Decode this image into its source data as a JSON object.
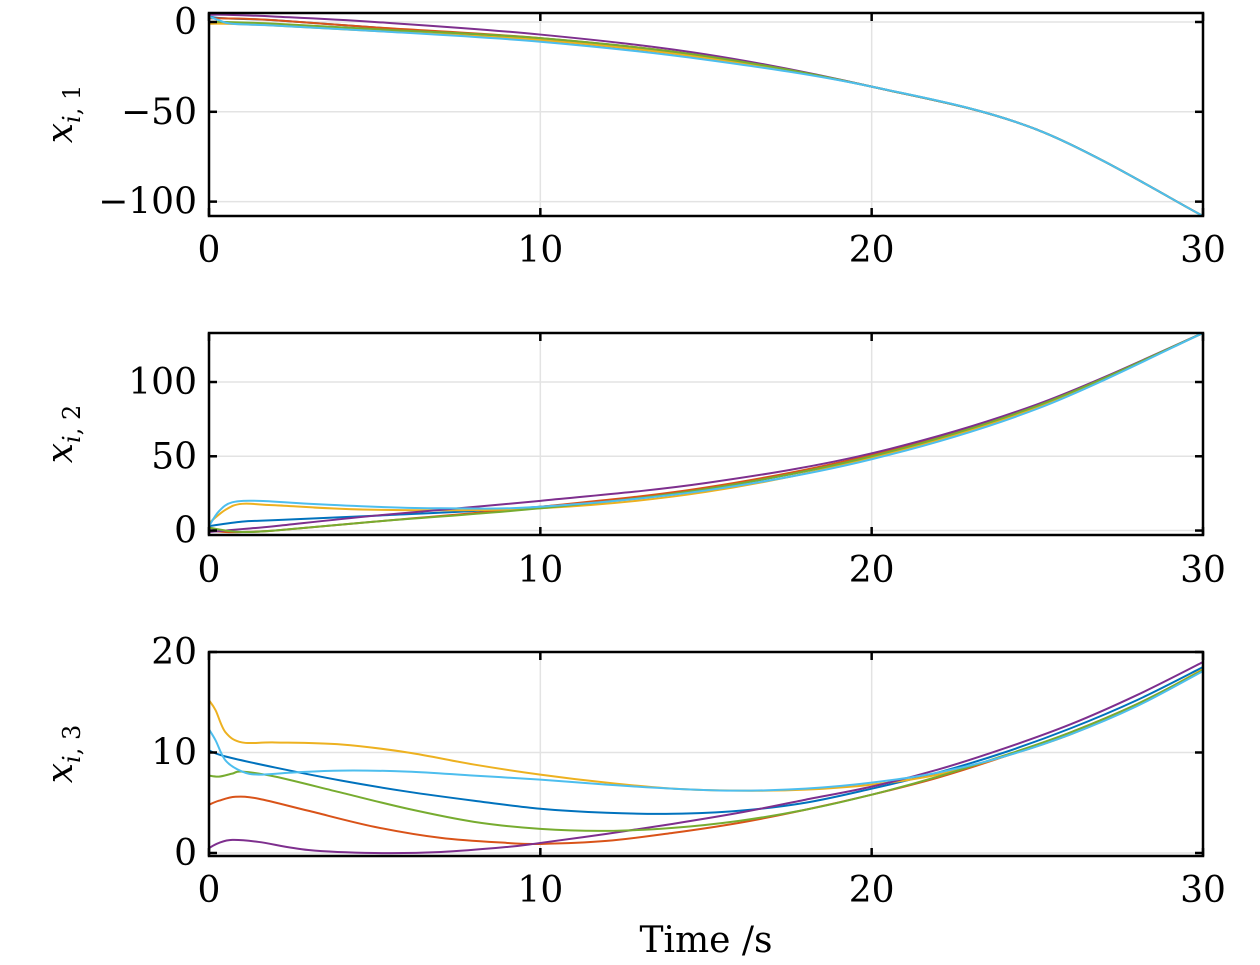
{
  "chart_data": [
    {
      "type": "line",
      "xlabel": "",
      "ylabel": {
        "symbol": "x",
        "sub_i": "i",
        "sub_rest": ", 1"
      },
      "xlim": [
        0,
        30
      ],
      "ylim": [
        -108,
        5
      ],
      "xticks": [
        0,
        10,
        20,
        30
      ],
      "xtick_labels": [
        "0",
        "10",
        "20",
        "30"
      ],
      "yticks": [
        0,
        -50,
        -100
      ],
      "ytick_labels": [
        "0",
        "−50",
        "−100"
      ],
      "grid": true,
      "series": [
        {
          "color": "#0072BD",
          "points": [
            [
              0,
              3
            ],
            [
              0.5,
              2
            ],
            [
              2,
              1
            ],
            [
              5,
              -3
            ],
            [
              10,
              -10
            ],
            [
              15,
              -20
            ],
            [
              20,
              -36
            ],
            [
              25,
              -60
            ],
            [
              30,
              -108
            ]
          ]
        },
        {
          "color": "#D95319",
          "points": [
            [
              0,
              2
            ],
            [
              0.5,
              2
            ],
            [
              2,
              1
            ],
            [
              5,
              -3
            ],
            [
              10,
              -9
            ],
            [
              15,
              -19
            ],
            [
              20,
              -36
            ],
            [
              25,
              -60
            ],
            [
              30,
              -108
            ]
          ]
        },
        {
          "color": "#EDB120",
          "points": [
            [
              0,
              -1
            ],
            [
              0.5,
              -1
            ],
            [
              2,
              -2
            ],
            [
              5,
              -5
            ],
            [
              10,
              -10
            ],
            [
              15,
              -20
            ],
            [
              20,
              -36
            ],
            [
              25,
              -60
            ],
            [
              30,
              -108
            ]
          ]
        },
        {
          "color": "#7E2F8E",
          "points": [
            [
              0,
              4
            ],
            [
              0.5,
              4
            ],
            [
              2,
              3
            ],
            [
              5,
              0
            ],
            [
              10,
              -7
            ],
            [
              15,
              -18
            ],
            [
              20,
              -36
            ],
            [
              25,
              -60
            ],
            [
              30,
              -108
            ]
          ]
        },
        {
          "color": "#77AC30",
          "points": [
            [
              0,
              0
            ],
            [
              0.5,
              0
            ],
            [
              2,
              -1
            ],
            [
              5,
              -4
            ],
            [
              10,
              -9
            ],
            [
              15,
              -19
            ],
            [
              20,
              -36
            ],
            [
              25,
              -60
            ],
            [
              30,
              -108
            ]
          ]
        },
        {
          "color": "#4DBEEE",
          "points": [
            [
              0,
              3
            ],
            [
              0.3,
              1
            ],
            [
              0.7,
              -1
            ],
            [
              2,
              -2
            ],
            [
              5,
              -5
            ],
            [
              10,
              -11
            ],
            [
              15,
              -21
            ],
            [
              20,
              -36
            ],
            [
              25,
              -60
            ],
            [
              30,
              -108
            ]
          ]
        }
      ]
    },
    {
      "type": "line",
      "xlabel": "",
      "ylabel": {
        "symbol": "x",
        "sub_i": "i",
        "sub_rest": ", 2"
      },
      "xlim": [
        0,
        30
      ],
      "ylim": [
        -3,
        133
      ],
      "xticks": [
        0,
        10,
        20,
        30
      ],
      "xtick_labels": [
        "0",
        "10",
        "20",
        "30"
      ],
      "yticks": [
        0,
        50,
        100
      ],
      "ytick_labels": [
        "0",
        "50",
        "100"
      ],
      "grid": true,
      "series": [
        {
          "color": "#0072BD",
          "points": [
            [
              0,
              3
            ],
            [
              1,
              6
            ],
            [
              2,
              7
            ],
            [
              5,
              10
            ],
            [
              10,
              16
            ],
            [
              15,
              28
            ],
            [
              20,
              50
            ],
            [
              25,
              83
            ],
            [
              30,
              133
            ]
          ]
        },
        {
          "color": "#D95319",
          "points": [
            [
              0,
              0
            ],
            [
              0.5,
              -1
            ],
            [
              1,
              -1
            ],
            [
              2,
              0
            ],
            [
              5,
              6
            ],
            [
              10,
              16
            ],
            [
              15,
              29
            ],
            [
              20,
              51
            ],
            [
              25,
              84
            ],
            [
              30,
              133
            ]
          ]
        },
        {
          "color": "#EDB120",
          "points": [
            [
              0,
              5
            ],
            [
              0.5,
              14
            ],
            [
              1,
              18
            ],
            [
              2,
              17
            ],
            [
              5,
              14
            ],
            [
              10,
              15
            ],
            [
              15,
              26
            ],
            [
              20,
              49
            ],
            [
              25,
              83
            ],
            [
              30,
              133
            ]
          ]
        },
        {
          "color": "#7E2F8E",
          "points": [
            [
              0,
              -1
            ],
            [
              1,
              1
            ],
            [
              2,
              3
            ],
            [
              5,
              10
            ],
            [
              10,
              20
            ],
            [
              15,
              32
            ],
            [
              20,
              52
            ],
            [
              25,
              85
            ],
            [
              30,
              133
            ]
          ]
        },
        {
          "color": "#77AC30",
          "points": [
            [
              0,
              2
            ],
            [
              0.5,
              0
            ],
            [
              1,
              -1
            ],
            [
              2,
              0
            ],
            [
              5,
              6
            ],
            [
              10,
              15
            ],
            [
              15,
              28
            ],
            [
              20,
              50
            ],
            [
              25,
              84
            ],
            [
              30,
              133
            ]
          ]
        },
        {
          "color": "#4DBEEE",
          "points": [
            [
              0,
              3
            ],
            [
              0.3,
              13
            ],
            [
              0.7,
              19
            ],
            [
              1.5,
              20
            ],
            [
              3,
              18
            ],
            [
              5,
              16
            ],
            [
              7,
              15
            ],
            [
              10,
              16
            ],
            [
              15,
              27
            ],
            [
              20,
              48
            ],
            [
              25,
              82
            ],
            [
              30,
              133
            ]
          ]
        }
      ]
    },
    {
      "type": "line",
      "xlabel": "Time /s",
      "ylabel": {
        "symbol": "x",
        "sub_i": "i",
        "sub_rest": ", 3"
      },
      "xlim": [
        0,
        30
      ],
      "ylim": [
        -0.3,
        20
      ],
      "xticks": [
        0,
        10,
        20,
        30
      ],
      "xtick_labels": [
        "0",
        "10",
        "20",
        "30"
      ],
      "yticks": [
        0,
        10,
        20
      ],
      "ytick_labels": [
        "0",
        "10",
        "20"
      ],
      "grid": true,
      "series": [
        {
          "color": "#0072BD",
          "points": [
            [
              0,
              10.2
            ],
            [
              0.5,
              9.6
            ],
            [
              2,
              8.5
            ],
            [
              4,
              7.2
            ],
            [
              6,
              6.1
            ],
            [
              8,
              5.2
            ],
            [
              10,
              4.4
            ],
            [
              12,
              4
            ],
            [
              14,
              3.9
            ],
            [
              16,
              4.2
            ],
            [
              18,
              5
            ],
            [
              20,
              6.4
            ],
            [
              22,
              8
            ],
            [
              24,
              10
            ],
            [
              26,
              12.4
            ],
            [
              28,
              15.2
            ],
            [
              30,
              18.5
            ]
          ]
        },
        {
          "color": "#D95319",
          "points": [
            [
              0,
              4.8
            ],
            [
              0.3,
              5.2
            ],
            [
              0.8,
              5.6
            ],
            [
              1.5,
              5.4
            ],
            [
              3,
              4.2
            ],
            [
              5,
              2.6
            ],
            [
              7,
              1.5
            ],
            [
              9,
              1
            ],
            [
              10,
              0.9
            ],
            [
              12,
              1.2
            ],
            [
              14,
              2
            ],
            [
              16,
              3
            ],
            [
              18,
              4.3
            ],
            [
              20,
              5.8
            ],
            [
              22,
              7.5
            ],
            [
              24,
              9.6
            ],
            [
              26,
              12
            ],
            [
              28,
              14.8
            ],
            [
              30,
              18.2
            ]
          ]
        },
        {
          "color": "#EDB120",
          "points": [
            [
              0,
              15.2
            ],
            [
              0.2,
              14.2
            ],
            [
              0.5,
              12
            ],
            [
              1,
              11
            ],
            [
              2,
              11
            ],
            [
              4,
              10.8
            ],
            [
              6,
              10
            ],
            [
              8,
              8.8
            ],
            [
              10,
              7.8
            ],
            [
              12,
              7
            ],
            [
              14,
              6.4
            ],
            [
              16,
              6.2
            ],
            [
              18,
              6.3
            ],
            [
              20,
              6.8
            ],
            [
              22,
              7.8
            ],
            [
              24,
              9.6
            ],
            [
              26,
              11.8
            ],
            [
              28,
              14.7
            ],
            [
              30,
              18.3
            ]
          ]
        },
        {
          "color": "#7E2F8E",
          "points": [
            [
              0,
              0.5
            ],
            [
              0.3,
              1
            ],
            [
              0.7,
              1.3
            ],
            [
              1.5,
              1.1
            ],
            [
              3,
              0.3
            ],
            [
              5,
              0
            ],
            [
              7,
              0.1
            ],
            [
              9,
              0.6
            ],
            [
              10,
              1
            ],
            [
              12,
              1.9
            ],
            [
              14,
              2.9
            ],
            [
              16,
              4
            ],
            [
              18,
              5.3
            ],
            [
              20,
              6.6
            ],
            [
              22,
              8.3
            ],
            [
              24,
              10.4
            ],
            [
              26,
              12.8
            ],
            [
              28,
              15.7
            ],
            [
              30,
              19
            ]
          ]
        },
        {
          "color": "#77AC30",
          "points": [
            [
              0,
              7.7
            ],
            [
              0.3,
              7.6
            ],
            [
              0.7,
              7.9
            ],
            [
              1,
              8.1
            ],
            [
              2,
              7.6
            ],
            [
              4,
              6
            ],
            [
              6,
              4.4
            ],
            [
              8,
              3.1
            ],
            [
              10,
              2.4
            ],
            [
              12,
              2.2
            ],
            [
              14,
              2.5
            ],
            [
              16,
              3.2
            ],
            [
              18,
              4.3
            ],
            [
              20,
              5.8
            ],
            [
              22,
              7.6
            ],
            [
              24,
              9.7
            ],
            [
              26,
              12
            ],
            [
              28,
              14.8
            ],
            [
              30,
              18.2
            ]
          ]
        },
        {
          "color": "#4DBEEE",
          "points": [
            [
              0,
              12.3
            ],
            [
              0.2,
              11.2
            ],
            [
              0.5,
              9.2
            ],
            [
              1,
              8.1
            ],
            [
              1.5,
              7.8
            ],
            [
              2.5,
              8
            ],
            [
              4,
              8.2
            ],
            [
              6,
              8.1
            ],
            [
              8,
              7.7
            ],
            [
              10,
              7.3
            ],
            [
              12,
              6.8
            ],
            [
              14,
              6.4
            ],
            [
              16,
              6.2
            ],
            [
              18,
              6.4
            ],
            [
              20,
              7
            ],
            [
              22,
              8
            ],
            [
              24,
              9.6
            ],
            [
              26,
              11.8
            ],
            [
              28,
              14.6
            ],
            [
              30,
              18.1
            ]
          ]
        }
      ]
    }
  ]
}
